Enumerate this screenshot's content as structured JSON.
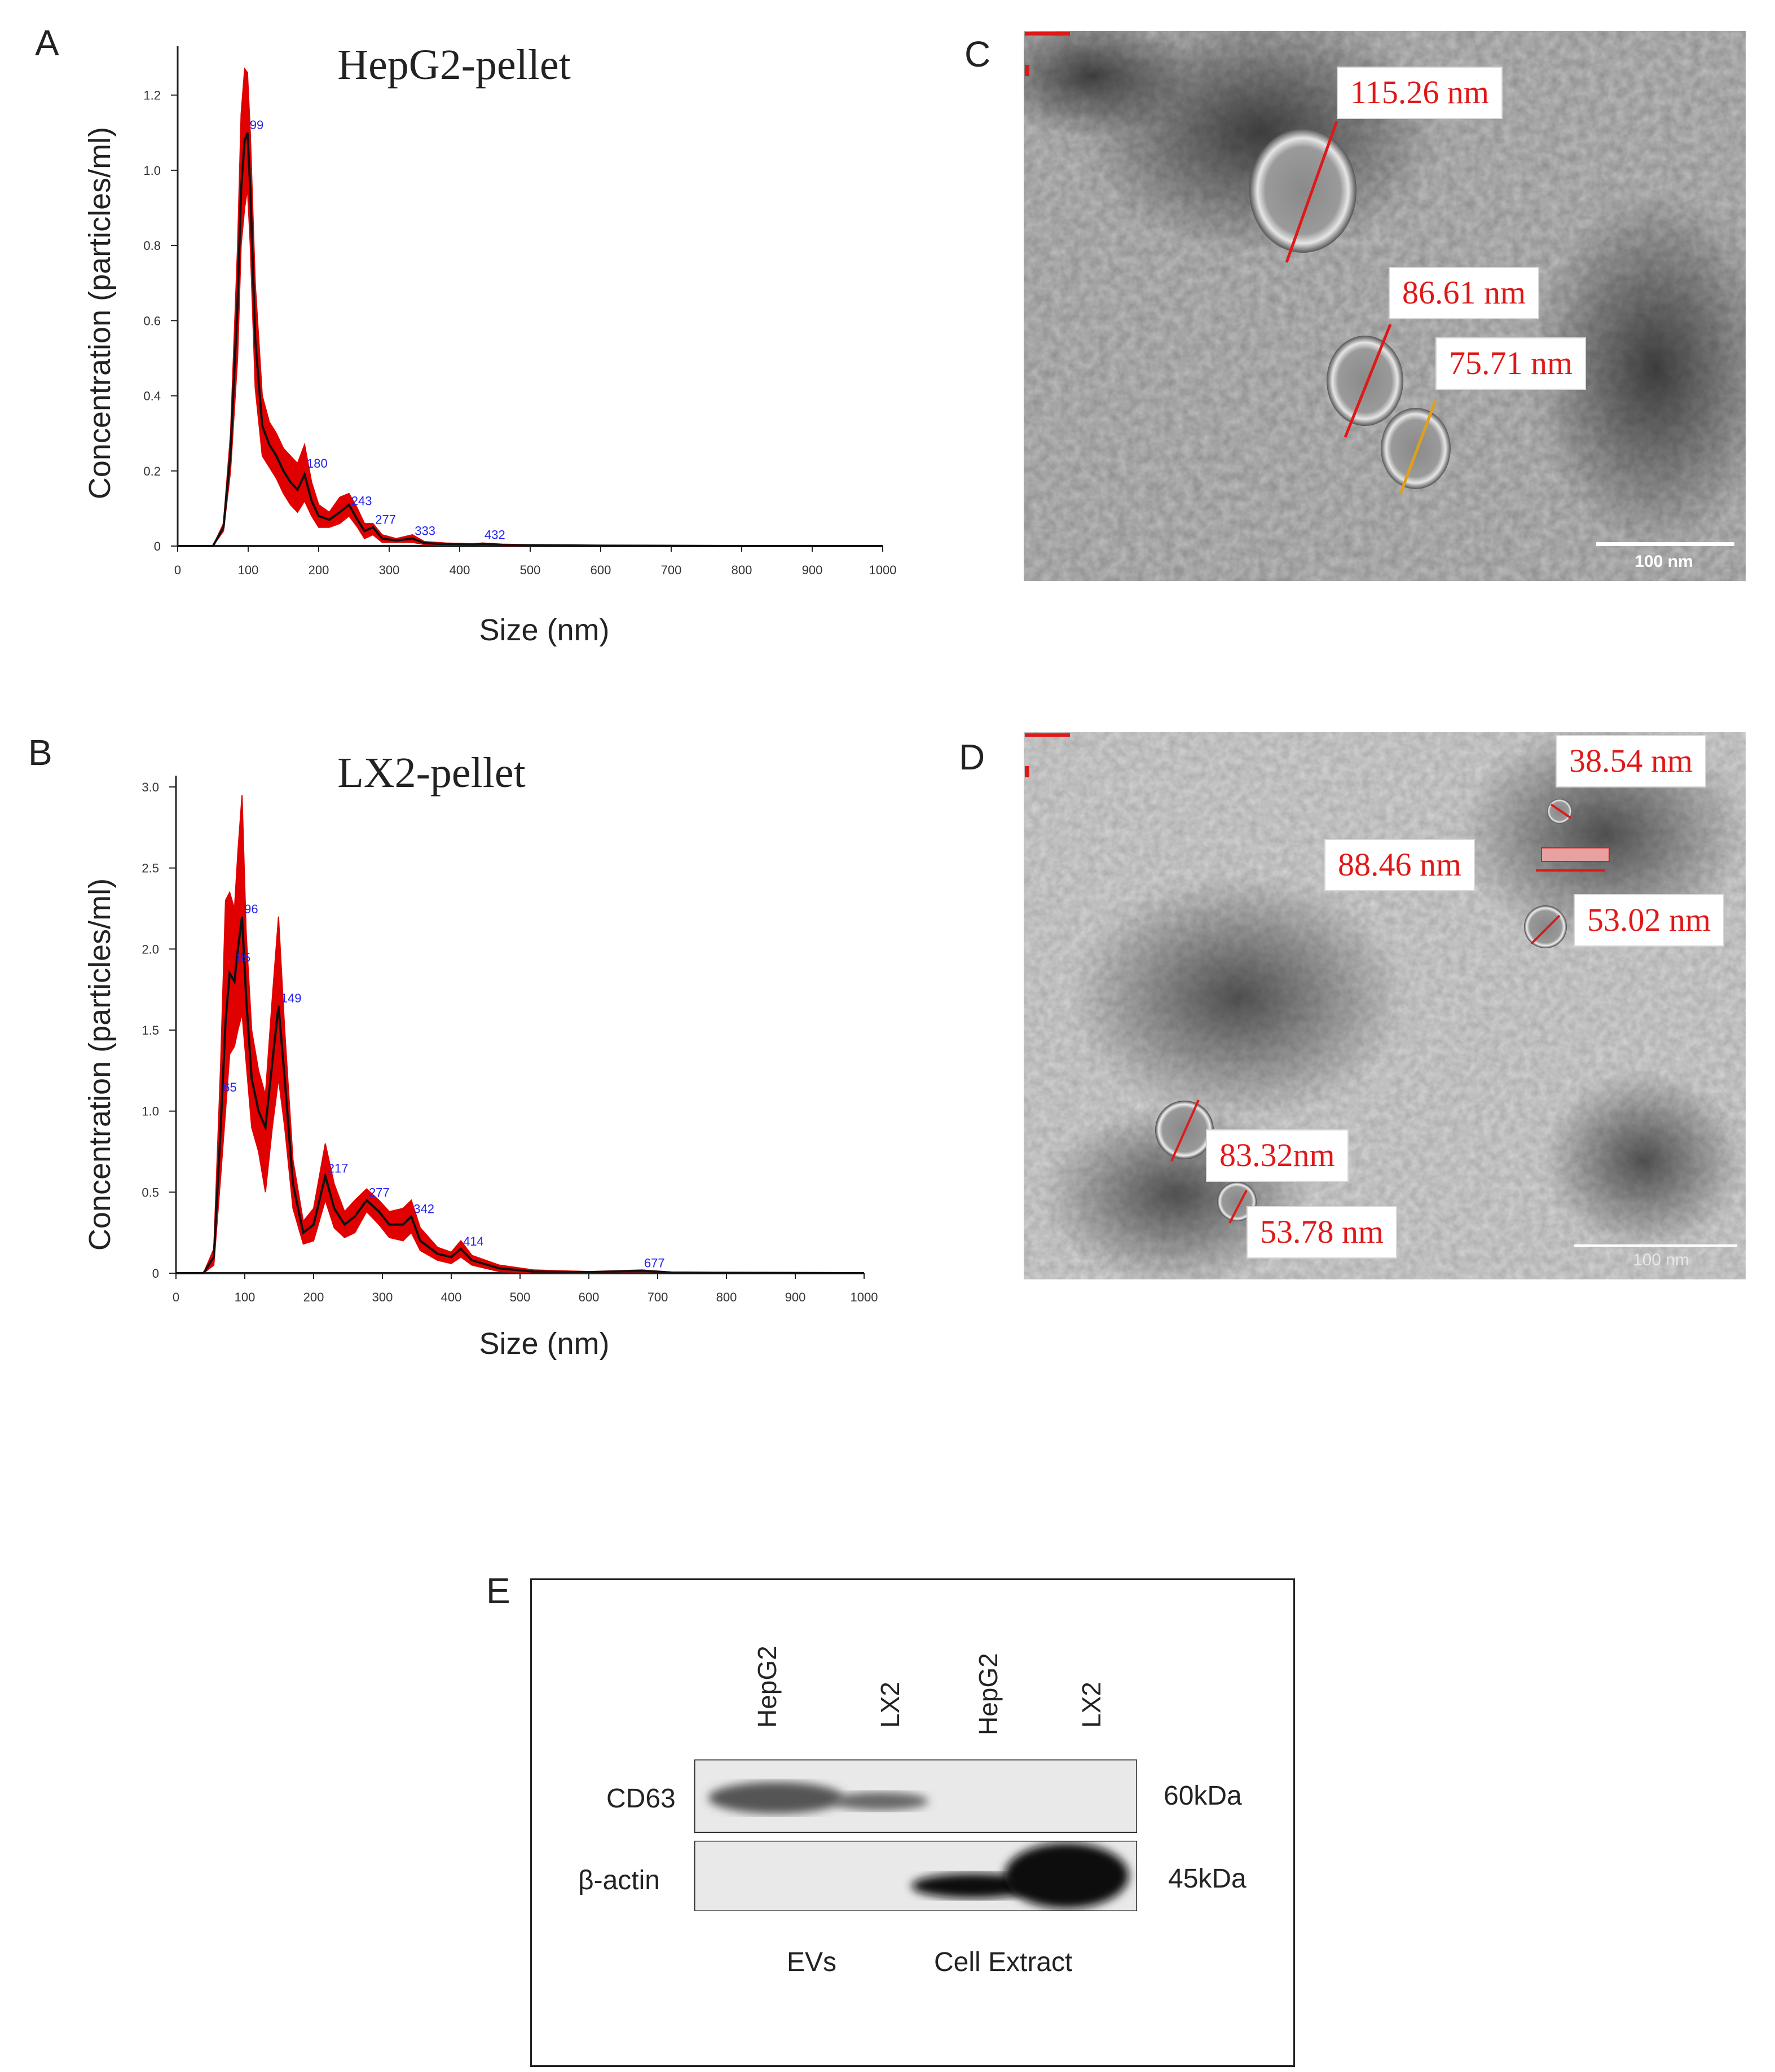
{
  "panels": {
    "A": {
      "letter": "A"
    },
    "B": {
      "letter": "B"
    },
    "C": {
      "letter": "C"
    },
    "D": {
      "letter": "D"
    },
    "E": {
      "letter": "E"
    }
  },
  "chart_data": [
    {
      "id": "A",
      "type": "line",
      "title": "HepG2-pellet",
      "xlabel": "Size (nm)",
      "ylabel": "Concentration (particles/ml)",
      "xlim": [
        0,
        1000
      ],
      "ylim": [
        0,
        1.3
      ],
      "x_ticks": [
        "0",
        "100",
        "200",
        "300",
        "400",
        "500",
        "600",
        "700",
        "800",
        "900",
        "1000"
      ],
      "y_ticks": [
        "0",
        "0.2",
        "0.4",
        "0.6",
        "0.8",
        "1.0",
        "1.2"
      ],
      "y_tick_values": [
        0,
        0.2,
        0.4,
        0.6,
        0.8,
        1.0,
        1.2
      ],
      "series": [
        {
          "x": [
            0,
            50,
            65,
            75,
            85,
            90,
            95,
            99,
            103,
            110,
            120,
            130,
            140,
            150,
            160,
            170,
            180,
            190,
            200,
            215,
            230,
            243,
            255,
            265,
            277,
            290,
            310,
            333,
            350,
            380,
            420,
            432,
            460,
            520,
            600,
            800,
            1000
          ],
          "y": [
            0,
            0,
            0.05,
            0.25,
            0.65,
            0.95,
            1.08,
            1.1,
            0.95,
            0.55,
            0.32,
            0.27,
            0.24,
            0.2,
            0.17,
            0.15,
            0.19,
            0.12,
            0.08,
            0.07,
            0.09,
            0.11,
            0.07,
            0.04,
            0.05,
            0.02,
            0.015,
            0.02,
            0.008,
            0.005,
            0.004,
            0.006,
            0.003,
            0.002,
            0.001,
            0.0,
            0.0
          ],
          "upper": [
            0,
            0,
            0.06,
            0.3,
            0.8,
            1.15,
            1.27,
            1.26,
            1.1,
            0.7,
            0.4,
            0.33,
            0.3,
            0.26,
            0.24,
            0.22,
            0.27,
            0.17,
            0.11,
            0.09,
            0.13,
            0.14,
            0.1,
            0.06,
            0.06,
            0.03,
            0.02,
            0.03,
            0.012,
            0.008,
            0.006,
            0.008,
            0.005,
            0.003,
            0.002,
            0.0,
            0.0
          ],
          "lower": [
            0,
            0,
            0.04,
            0.2,
            0.5,
            0.8,
            0.9,
            0.95,
            0.8,
            0.42,
            0.24,
            0.21,
            0.18,
            0.14,
            0.11,
            0.09,
            0.12,
            0.08,
            0.05,
            0.05,
            0.06,
            0.08,
            0.05,
            0.02,
            0.03,
            0.01,
            0.01,
            0.01,
            0.004,
            0.002,
            0.002,
            0.004,
            0.001,
            0.001,
            0.0,
            0.0,
            0.0
          ]
        }
      ],
      "peak_labels": [
        {
          "x": 99,
          "y": 1.1,
          "text": "99"
        },
        {
          "x": 180,
          "y": 0.2,
          "text": "180"
        },
        {
          "x": 243,
          "y": 0.1,
          "text": "243"
        },
        {
          "x": 277,
          "y": 0.05,
          "text": "277"
        },
        {
          "x": 333,
          "y": 0.02,
          "text": "333"
        },
        {
          "x": 432,
          "y": 0.01,
          "text": "432"
        }
      ]
    },
    {
      "id": "B",
      "type": "line",
      "title": "LX2-pellet",
      "xlabel": "Size (nm)",
      "ylabel": "Concentration (particles/ml)",
      "xlim": [
        0,
        1000
      ],
      "ylim": [
        0,
        3.0
      ],
      "x_ticks": [
        "0",
        "100",
        "200",
        "300",
        "400",
        "500",
        "600",
        "700",
        "800",
        "900",
        "1000"
      ],
      "y_ticks": [
        "0",
        "0.5",
        "1.0",
        "1.5",
        "2.0",
        "2.5",
        "3.0"
      ],
      "y_tick_values": [
        0,
        0.5,
        1.0,
        1.5,
        2.0,
        2.5,
        3.0
      ],
      "series": [
        {
          "x": [
            0,
            40,
            55,
            65,
            72,
            78,
            85,
            90,
            96,
            102,
            110,
            120,
            130,
            140,
            149,
            158,
            170,
            185,
            200,
            217,
            230,
            245,
            260,
            277,
            295,
            310,
            330,
            342,
            355,
            380,
            400,
            414,
            430,
            470,
            520,
            600,
            677,
            720,
            800,
            1000
          ],
          "y": [
            0,
            0,
            0.1,
            0.9,
            1.55,
            1.85,
            1.8,
            2.0,
            2.2,
            1.7,
            1.2,
            1.0,
            0.9,
            1.3,
            1.65,
            1.2,
            0.55,
            0.25,
            0.3,
            0.6,
            0.4,
            0.3,
            0.35,
            0.45,
            0.38,
            0.3,
            0.3,
            0.35,
            0.2,
            0.12,
            0.1,
            0.15,
            0.08,
            0.03,
            0.01,
            0.006,
            0.015,
            0.004,
            0.002,
            0.0
          ],
          "upper": [
            0,
            0,
            0.15,
            1.3,
            2.3,
            2.35,
            2.25,
            2.6,
            2.95,
            2.1,
            1.5,
            1.25,
            1.1,
            1.7,
            2.2,
            1.5,
            0.7,
            0.32,
            0.4,
            0.8,
            0.55,
            0.38,
            0.45,
            0.52,
            0.45,
            0.38,
            0.4,
            0.45,
            0.28,
            0.16,
            0.13,
            0.2,
            0.11,
            0.05,
            0.02,
            0.01,
            0.02,
            0.007,
            0.003,
            0.0
          ],
          "lower": [
            0,
            0,
            0.05,
            0.6,
            1.0,
            1.35,
            1.4,
            1.5,
            1.6,
            1.3,
            0.9,
            0.75,
            0.5,
            0.9,
            1.2,
            0.9,
            0.4,
            0.18,
            0.2,
            0.45,
            0.28,
            0.22,
            0.25,
            0.38,
            0.3,
            0.22,
            0.2,
            0.25,
            0.14,
            0.08,
            0.06,
            0.1,
            0.05,
            0.01,
            0.004,
            0.002,
            0.01,
            0.002,
            0.001,
            0.0
          ]
        }
      ],
      "peak_labels": [
        {
          "x": 65,
          "y": 1.1,
          "text": "65"
        },
        {
          "x": 85,
          "y": 1.9,
          "text": "85"
        },
        {
          "x": 96,
          "y": 2.2,
          "text": "96"
        },
        {
          "x": 149,
          "y": 1.65,
          "text": "149"
        },
        {
          "x": 217,
          "y": 0.6,
          "text": "217"
        },
        {
          "x": 277,
          "y": 0.45,
          "text": "277"
        },
        {
          "x": 342,
          "y": 0.35,
          "text": "342"
        },
        {
          "x": 414,
          "y": 0.15,
          "text": "414"
        },
        {
          "x": 677,
          "y": 0.015,
          "text": "677"
        }
      ]
    }
  ],
  "tem": {
    "C": {
      "labels": [
        "115.26 nm",
        "86.61 nm",
        "75.71 nm"
      ],
      "scale_bar": "100 nm"
    },
    "D": {
      "labels": [
        "38.54 nm",
        "88.46 nm",
        "53.02 nm",
        "83.32nm",
        "53.78 nm"
      ],
      "scale_bar": "100 nm"
    }
  },
  "blot": {
    "lanes": [
      "HepG2",
      "LX2",
      "HepG2",
      "LX2"
    ],
    "rows": [
      {
        "protein": "CD63",
        "size": "60kDa"
      },
      {
        "protein": "β-actin",
        "size": "45kDa"
      }
    ],
    "groups": [
      "EVs",
      "Cell Extract"
    ]
  },
  "colors": {
    "band": "#e00000",
    "mean_line": "#111111",
    "peak_label": "#2222ee",
    "em_label": "#e01818"
  }
}
